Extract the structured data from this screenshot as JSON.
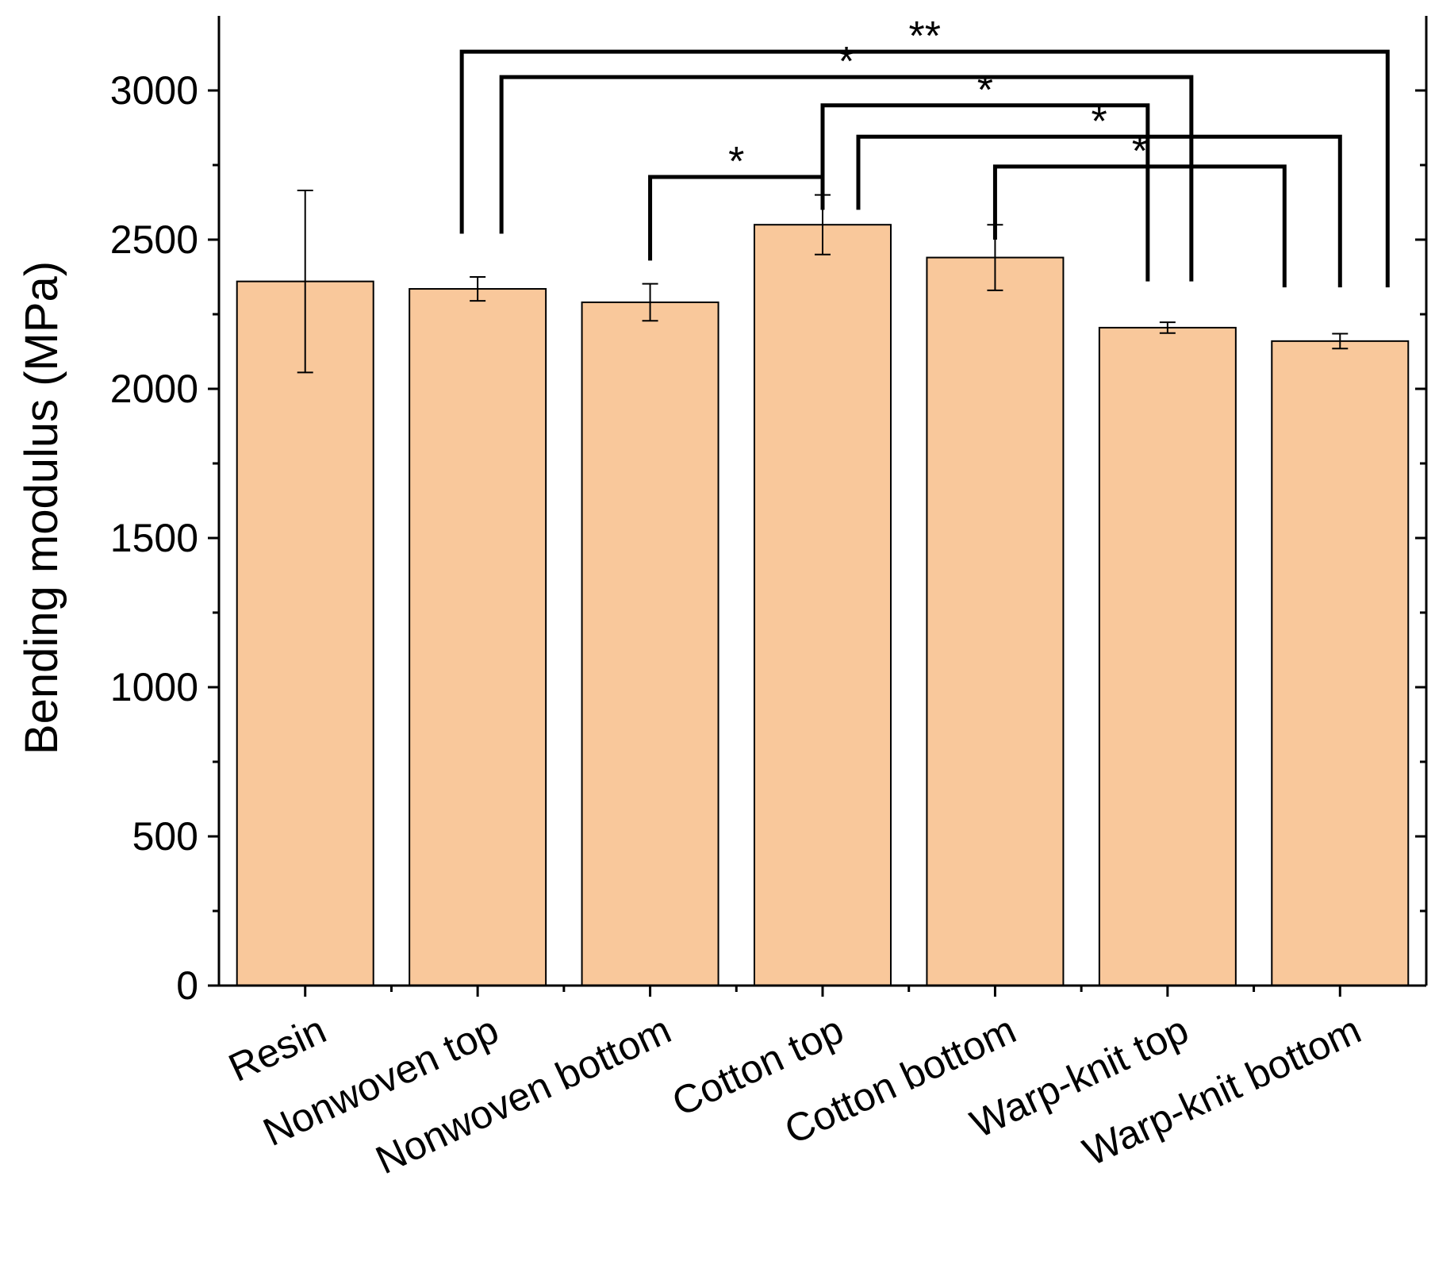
{
  "chart_data": {
    "type": "bar",
    "title": "",
    "xlabel": "",
    "ylabel": "Bending modulus (MPa)",
    "ylim": [
      0,
      3250
    ],
    "yticks": [
      0,
      500,
      1000,
      1500,
      2000,
      2500,
      3000
    ],
    "categories": [
      "Resin",
      "Nonwoven top",
      "Nonwoven bottom",
      "Cotton top",
      "Cotton bottom",
      "Warp-knit top",
      "Warp-knit bottom"
    ],
    "values": [
      2360,
      2335,
      2290,
      2550,
      2440,
      2205,
      2160
    ],
    "errors": [
      305,
      40,
      62,
      100,
      110,
      18,
      25
    ],
    "bar_color": "#f9c89b",
    "significance": [
      {
        "from": 1,
        "to": 6,
        "label": "**",
        "level": 3130
      },
      {
        "from": 1,
        "to": 5,
        "label": "*",
        "level": 3045
      },
      {
        "from": 3,
        "to": 5,
        "label": "*",
        "level": 2950
      },
      {
        "from": 3,
        "to": 6,
        "label": "*",
        "level": 2845
      },
      {
        "from": 4,
        "to": 6,
        "label": "*",
        "level": 2745
      },
      {
        "from": 2,
        "to": 3,
        "label": "*",
        "level": 2710
      }
    ]
  }
}
